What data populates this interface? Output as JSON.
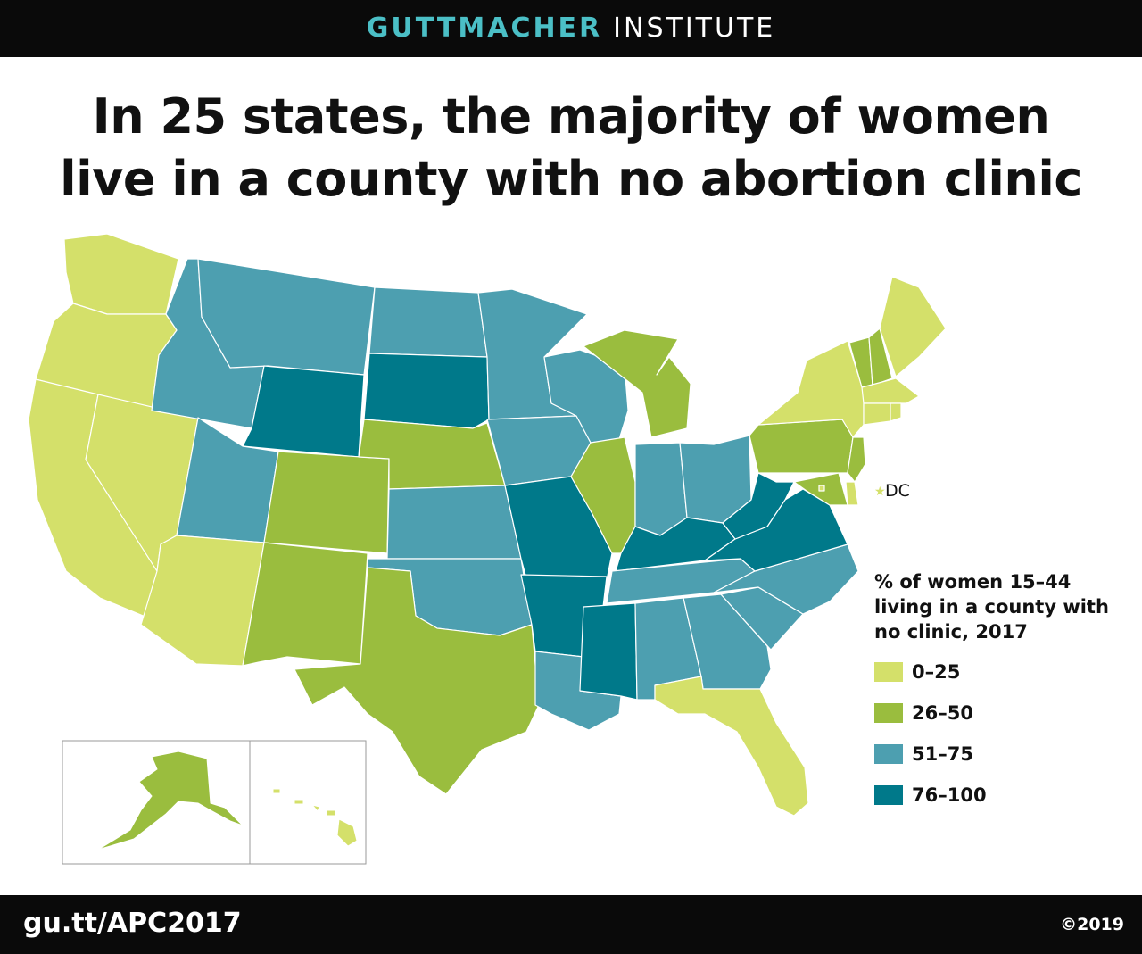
{
  "header": {
    "brand_strong": "GUTTMACHER",
    "brand_light": "INSTITUTE"
  },
  "headline": {
    "line1": "In 25 states, the majority of women",
    "line2": "live in a county with no abortion clinic"
  },
  "map": {
    "dc_label": "DC",
    "categories": [
      {
        "key": "c1",
        "label": "0–25",
        "color": "#d4e06a"
      },
      {
        "key": "c2",
        "label": "26–50",
        "color": "#9abd3e"
      },
      {
        "key": "c3",
        "label": "51–75",
        "color": "#4d9fb0"
      },
      {
        "key": "c4",
        "label": "76–100",
        "color": "#00798a"
      }
    ],
    "states": {
      "WA": "c1",
      "OR": "c1",
      "CA": "c1",
      "NV": "c1",
      "AZ": "c1",
      "ID": "c3",
      "MT": "c3",
      "WY": "c4",
      "UT": "c3",
      "CO": "c2",
      "NM": "c2",
      "ND": "c3",
      "SD": "c4",
      "NE": "c2",
      "KS": "c3",
      "OK": "c3",
      "TX": "c2",
      "MN": "c3",
      "IA": "c3",
      "MO": "c4",
      "AR": "c4",
      "LA": "c3",
      "WI": "c3",
      "IL": "c2",
      "MI": "c2",
      "IN": "c3",
      "OH": "c3",
      "KY": "c4",
      "TN": "c3",
      "MS": "c4",
      "AL": "c3",
      "GA": "c3",
      "FL": "c1",
      "SC": "c3",
      "NC": "c3",
      "VA": "c4",
      "WV": "c4",
      "PA": "c2",
      "NY": "c1",
      "VT": "c2",
      "NH": "c2",
      "ME": "c1",
      "MA": "c1",
      "RI": "c1",
      "CT": "c1",
      "NJ": "c2",
      "DE": "c1",
      "MD": "c2",
      "DC": "c1",
      "AK": "c2",
      "HI": "c1"
    }
  },
  "legend": {
    "title": "% of women 15–44\nliving in a county with\nno clinic, 2017"
  },
  "footer": {
    "short_url": "gu.tt/APC2017",
    "copyright": "©2019"
  }
}
